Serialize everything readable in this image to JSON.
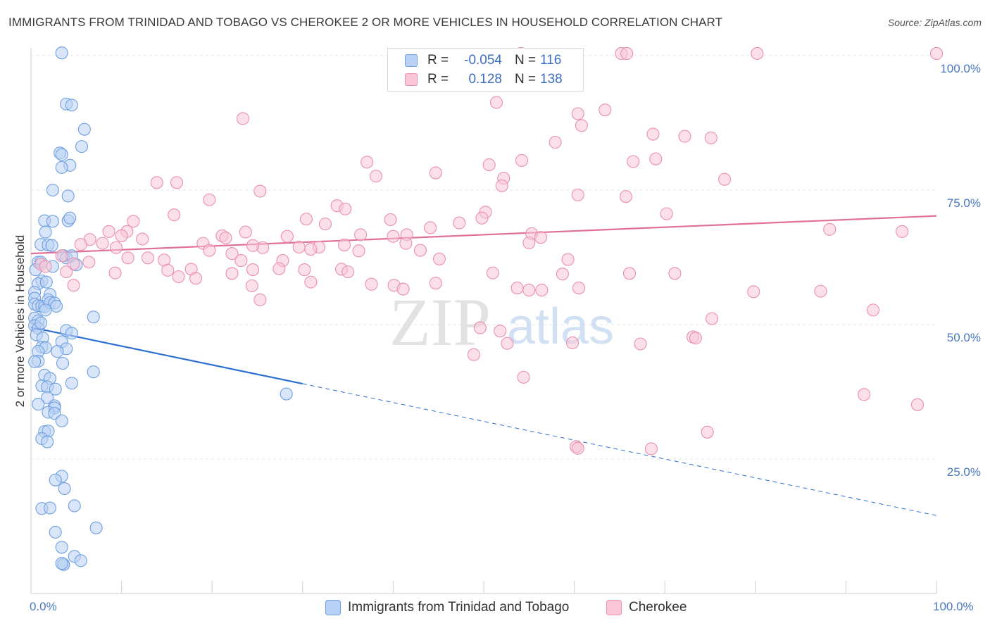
{
  "header": {
    "title": "IMMIGRANTS FROM TRINIDAD AND TOBAGO VS CHEROKEE 2 OR MORE VEHICLES IN HOUSEHOLD CORRELATION CHART",
    "source": "Source: ZipAtlas.com"
  },
  "watermark": {
    "zip": "ZIP",
    "atlas": "atlas"
  },
  "legend": {
    "series": [
      {
        "r_label": "R =",
        "r_value": "-0.054",
        "n_label": "N =",
        "n_value": "116",
        "color": "#6f9fe0",
        "fill": "#b9d1f4"
      },
      {
        "r_label": "R =",
        "r_value": "0.128",
        "n_label": "N =",
        "n_value": "138",
        "color": "#ea8fb0",
        "fill": "#f8c6d7"
      }
    ]
  },
  "bottom_legend": {
    "items": [
      {
        "label": "Immigrants from Trinidad and Tobago"
      },
      {
        "label": "Cherokee"
      }
    ]
  },
  "chart_data": {
    "type": "scatter",
    "title": "IMMIGRANTS FROM TRINIDAD AND TOBAGO VS CHEROKEE 2 OR MORE VEHICLES IN HOUSEHOLD CORRELATION CHART",
    "ylabel": "2 or more Vehicles in Household",
    "xlabel": "",
    "xlim": [
      0,
      100
    ],
    "ylim": [
      0,
      100
    ],
    "x_tick_labels": [
      "0.0%",
      "100.0%"
    ],
    "y_tick_labels": [
      {
        "value": 25,
        "label": "25.0%"
      },
      {
        "value": 50,
        "label": "50.0%"
      },
      {
        "value": 75,
        "label": "75.0%"
      },
      {
        "value": 100,
        "label": "100.0%"
      }
    ],
    "grid": true,
    "legend_position": "top-center",
    "series": [
      {
        "name": "Immigrants from Trinidad and Tobago",
        "color": "#6f9fe0",
        "fill": "#b9d1f4",
        "trend": {
          "x": [
            0,
            30
          ],
          "y": [
            49.5,
            39.0
          ],
          "dashed_to": [
            100,
            14.5
          ],
          "color": "#2b6fd1"
        },
        "points": [
          [
            3.4,
            100.5
          ],
          [
            3.9,
            91
          ],
          [
            4.5,
            90.8
          ],
          [
            5.9,
            86.3
          ],
          [
            3.2,
            81.9
          ],
          [
            3.4,
            81.6
          ],
          [
            5.6,
            83.1
          ],
          [
            4.3,
            79.6
          ],
          [
            3.4,
            79.2
          ],
          [
            2.4,
            75.0
          ],
          [
            4.1,
            73.9
          ],
          [
            1.5,
            69.3
          ],
          [
            4.1,
            69.3
          ],
          [
            4.3,
            69.8
          ],
          [
            1.6,
            67.2
          ],
          [
            2.4,
            69.2
          ],
          [
            1.1,
            64.9
          ],
          [
            1.9,
            64.8
          ],
          [
            2.3,
            64.7
          ],
          [
            3.6,
            62.8
          ],
          [
            3.9,
            62.4
          ],
          [
            4.5,
            62.8
          ],
          [
            0.8,
            61.6
          ],
          [
            1.1,
            61.6
          ],
          [
            2.4,
            60.8
          ],
          [
            5.0,
            61.1
          ],
          [
            0.5,
            60.2
          ],
          [
            1.2,
            58.1
          ],
          [
            0.8,
            57.6
          ],
          [
            1.7,
            57.9
          ],
          [
            0.4,
            56.0
          ],
          [
            2.1,
            55.6
          ],
          [
            0.4,
            54.9
          ],
          [
            0.4,
            53.8
          ],
          [
            0.8,
            53.5
          ],
          [
            1.2,
            53.4
          ],
          [
            1.5,
            53.3
          ],
          [
            1.9,
            54.6
          ],
          [
            2.1,
            54.1
          ],
          [
            2.6,
            54.0
          ],
          [
            2.8,
            53.4
          ],
          [
            1.6,
            52.7
          ],
          [
            0.4,
            51.2
          ],
          [
            0.8,
            50.7
          ],
          [
            0.4,
            49.8
          ],
          [
            0.8,
            49.3
          ],
          [
            1.1,
            50.3
          ],
          [
            3.9,
            48.9
          ],
          [
            4.5,
            48.4
          ],
          [
            6.9,
            51.4
          ],
          [
            0.6,
            48.1
          ],
          [
            1.3,
            47.5
          ],
          [
            3.4,
            46.8
          ],
          [
            1.2,
            45.8
          ],
          [
            1.6,
            45.7
          ],
          [
            3.9,
            45.5
          ],
          [
            0.8,
            45.0
          ],
          [
            2.9,
            45.0
          ],
          [
            0.8,
            43.2
          ],
          [
            0.4,
            43.1
          ],
          [
            3.5,
            42.8
          ],
          [
            1.5,
            40.6
          ],
          [
            2.1,
            40.0
          ],
          [
            6.9,
            41.2
          ],
          [
            4.5,
            39.1
          ],
          [
            1.2,
            38.6
          ],
          [
            1.8,
            38.4
          ],
          [
            2.7,
            38.0
          ],
          [
            1.8,
            36.4
          ],
          [
            0.8,
            35.2
          ],
          [
            2.6,
            34.9
          ],
          [
            2.6,
            34.5
          ],
          [
            1.9,
            33.7
          ],
          [
            2.6,
            33.5
          ],
          [
            3.4,
            32.1
          ],
          [
            1.5,
            30.1
          ],
          [
            1.9,
            30.2
          ],
          [
            1.2,
            28.8
          ],
          [
            1.8,
            28.2
          ],
          [
            28.2,
            37.1
          ],
          [
            3.4,
            21.8
          ],
          [
            2.7,
            21.1
          ],
          [
            3.7,
            19.5
          ],
          [
            1.2,
            15.8
          ],
          [
            2.1,
            15.9
          ],
          [
            4.8,
            16.3
          ],
          [
            7.2,
            12.2
          ],
          [
            2.7,
            11.4
          ],
          [
            3.4,
            8.6
          ],
          [
            4.8,
            6.9
          ],
          [
            5.5,
            6.1
          ],
          [
            3.6,
            5.4
          ],
          [
            3.6,
            5.4
          ],
          [
            3.4,
            5.6
          ]
        ]
      },
      {
        "name": "Cherokee",
        "color": "#ea8fb0",
        "fill": "#f8c6d7",
        "trend": {
          "x": [
            0,
            100
          ],
          "y": [
            63.2,
            70.2
          ],
          "color": "#e06f9a"
        },
        "points": [
          [
            54.1,
            100.4
          ],
          [
            65.2,
            100.4
          ],
          [
            65.8,
            100.4
          ],
          [
            80.2,
            100.4
          ],
          [
            100,
            100.4
          ],
          [
            51.4,
            91.3
          ],
          [
            60.4,
            89.2
          ],
          [
            63.4,
            89.9
          ],
          [
            60.8,
            87.0
          ],
          [
            23.4,
            88.3
          ],
          [
            68.7,
            85.4
          ],
          [
            72.2,
            85.0
          ],
          [
            75.1,
            84.7
          ],
          [
            57.9,
            83.9
          ],
          [
            54.2,
            80.5
          ],
          [
            37.1,
            80.2
          ],
          [
            66.5,
            80.3
          ],
          [
            69.0,
            80.8
          ],
          [
            50.6,
            79.7
          ],
          [
            44.7,
            78.2
          ],
          [
            38.1,
            77.6
          ],
          [
            52.2,
            77.2
          ],
          [
            76.6,
            77.0
          ],
          [
            13.9,
            76.4
          ],
          [
            16.1,
            76.4
          ],
          [
            25.3,
            74.8
          ],
          [
            52.0,
            75.8
          ],
          [
            60.4,
            74.1
          ],
          [
            65.7,
            73.8
          ],
          [
            19.7,
            73.2
          ],
          [
            33.8,
            72.1
          ],
          [
            34.7,
            71.5
          ],
          [
            50.2,
            70.9
          ],
          [
            70.2,
            70.6
          ],
          [
            39.7,
            69.5
          ],
          [
            15.8,
            70.4
          ],
          [
            30.4,
            69.6
          ],
          [
            49.8,
            69.8
          ],
          [
            11.3,
            69.2
          ],
          [
            32.5,
            68.7
          ],
          [
            44.1,
            68.0
          ],
          [
            47.3,
            68.9
          ],
          [
            23.7,
            67.2
          ],
          [
            10.6,
            67.3
          ],
          [
            8.6,
            67.3
          ],
          [
            10.0,
            66.5
          ],
          [
            21.1,
            66.5
          ],
          [
            28.3,
            66.4
          ],
          [
            41.5,
            66.7
          ],
          [
            36.4,
            66.7
          ],
          [
            40.0,
            66.4
          ],
          [
            55.3,
            66.9
          ],
          [
            56.3,
            66.2
          ],
          [
            88.2,
            67.7
          ],
          [
            96.2,
            67.3
          ],
          [
            21.5,
            66.1
          ],
          [
            6.5,
            65.8
          ],
          [
            12.3,
            65.9
          ],
          [
            7.9,
            65.1
          ],
          [
            5.5,
            64.9
          ],
          [
            19.0,
            65.1
          ],
          [
            25.6,
            64.3
          ],
          [
            24.5,
            64.7
          ],
          [
            31.8,
            64.4
          ],
          [
            41.4,
            65.1
          ],
          [
            29.6,
            64.4
          ],
          [
            55.0,
            65.2
          ],
          [
            34.6,
            64.8
          ],
          [
            9.4,
            64.3
          ],
          [
            19.7,
            63.8
          ],
          [
            22.2,
            63.2
          ],
          [
            36.2,
            63.7
          ],
          [
            30.9,
            64.0
          ],
          [
            43.0,
            63.8
          ],
          [
            10.7,
            62.4
          ],
          [
            3.4,
            62.8
          ],
          [
            12.9,
            62.4
          ],
          [
            14.7,
            62.0
          ],
          [
            23.2,
            61.9
          ],
          [
            27.8,
            61.9
          ],
          [
            45.1,
            62.2
          ],
          [
            59.3,
            62.1
          ],
          [
            1.1,
            61.2
          ],
          [
            1.6,
            60.8
          ],
          [
            4.7,
            61.3
          ],
          [
            6.4,
            61.6
          ],
          [
            24.5,
            60.2
          ],
          [
            27.4,
            60.4
          ],
          [
            34.3,
            60.3
          ],
          [
            15.1,
            60.1
          ],
          [
            17.7,
            60.3
          ],
          [
            30.2,
            60.2
          ],
          [
            22.2,
            59.5
          ],
          [
            35.0,
            59.8
          ],
          [
            3.9,
            59.8
          ],
          [
            9.3,
            59.6
          ],
          [
            16.3,
            58.9
          ],
          [
            18.2,
            58.6
          ],
          [
            51.0,
            59.6
          ],
          [
            58.7,
            59.4
          ],
          [
            66.1,
            59.5
          ],
          [
            71.1,
            59.5
          ],
          [
            30.9,
            57.9
          ],
          [
            37.6,
            57.5
          ],
          [
            40.1,
            57.3
          ],
          [
            44.7,
            57.7
          ],
          [
            4.7,
            57.3
          ],
          [
            24.4,
            57.2
          ],
          [
            41.1,
            56.6
          ],
          [
            53.7,
            56.8
          ],
          [
            55.0,
            56.4
          ],
          [
            56.4,
            56.4
          ],
          [
            60.5,
            56.8
          ],
          [
            79.8,
            56.1
          ],
          [
            87.2,
            56.2
          ],
          [
            25.3,
            54.6
          ],
          [
            93.0,
            52.7
          ],
          [
            75.2,
            51.1
          ],
          [
            49.6,
            49.4
          ],
          [
            51.8,
            48.8
          ],
          [
            73.1,
            47.7
          ],
          [
            59.8,
            46.6
          ],
          [
            52.6,
            46.5
          ],
          [
            67.3,
            46.4
          ],
          [
            48.9,
            44.4
          ],
          [
            73.4,
            47.5
          ],
          [
            54.4,
            40.2
          ],
          [
            92.0,
            37.0
          ],
          [
            97.9,
            35.1
          ],
          [
            74.7,
            30.0
          ],
          [
            60.2,
            27.3
          ],
          [
            68.5,
            26.9
          ],
          [
            60.4,
            27.0
          ]
        ]
      }
    ]
  }
}
